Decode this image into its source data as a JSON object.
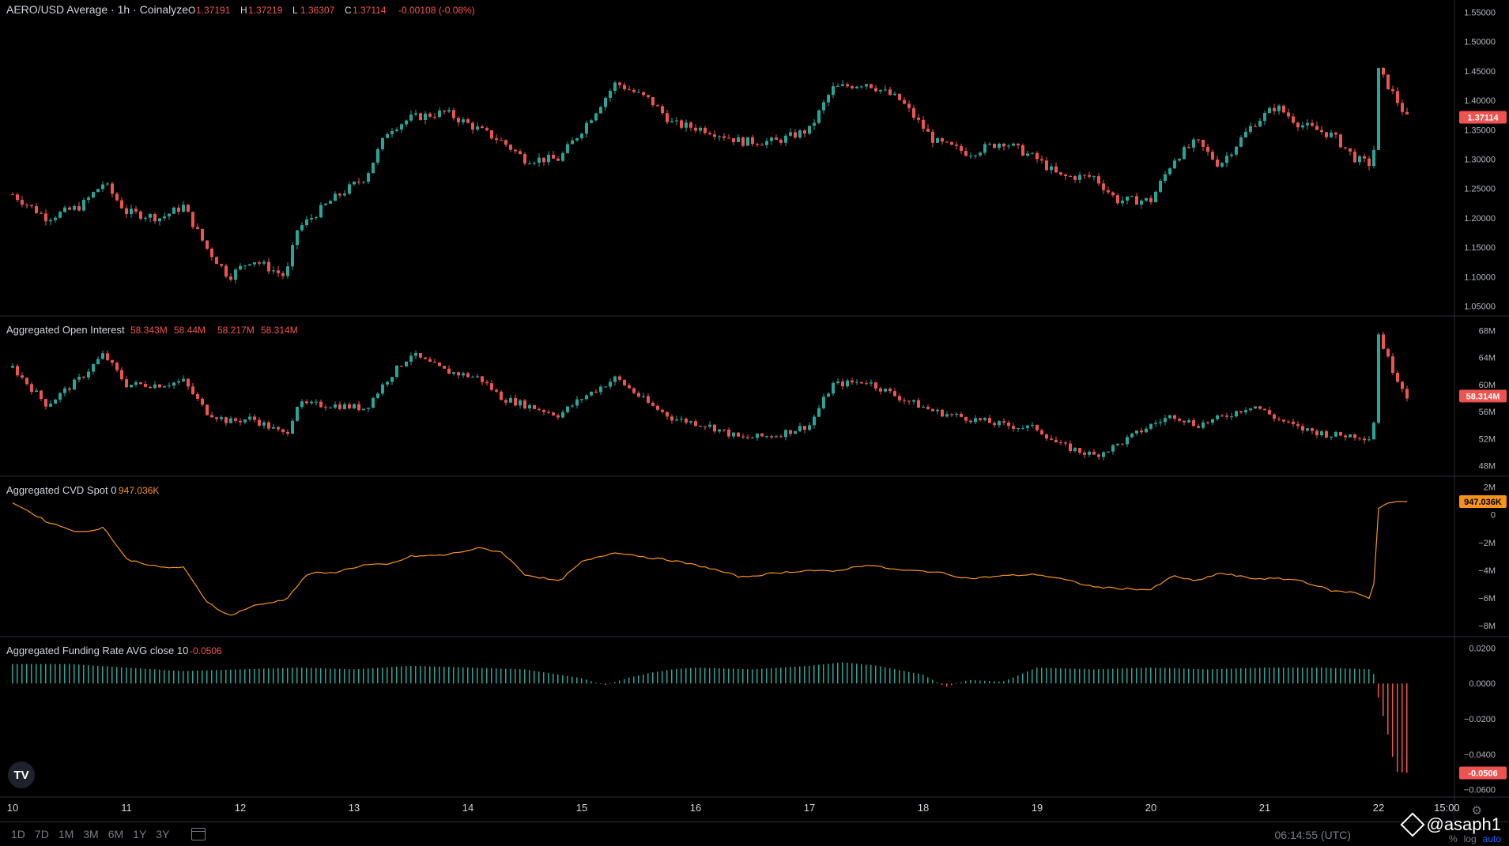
{
  "header": {
    "symbol_title": "AERO/USD Average · 1h · Coinalyze",
    "ohlc": [
      {
        "k": "O",
        "v": "1.37191"
      },
      {
        "k": "H",
        "v": "1.37219"
      },
      {
        "k": "L",
        "v": "1.36307"
      },
      {
        "k": "C",
        "v": "1.37114"
      }
    ],
    "change": "-0.00108 (-0.08%)",
    "last_price": "1.37114"
  },
  "panes": {
    "oi": {
      "title": "Aggregated Open Interest",
      "values": [
        "58.343M",
        "58.44M",
        "58.217M",
        "58.314M"
      ],
      "last": "58.314M"
    },
    "cvd": {
      "title": "Aggregated CVD Spot 0",
      "value": "947.036K",
      "last": "947.036K"
    },
    "funding": {
      "title": "Aggregated Funding Rate AVG close 10",
      "value": "-0.0506",
      "last": "-0.0506"
    }
  },
  "chart_data": [
    {
      "type": "candlestick",
      "title": "AERO/USD Average · 1h · Coinalyze",
      "y_ticks": [
        "1.55000",
        "1.50000",
        "1.45000",
        "1.40000",
        "1.35000",
        "1.30000",
        "1.25000",
        "1.20000",
        "1.15000",
        "1.10000",
        "1.05000"
      ],
      "ylim": [
        1.04,
        1.56
      ],
      "x_ticks": [
        "10",
        "11",
        "12",
        "13",
        "14",
        "15",
        "16",
        "17",
        "18",
        "19",
        "20",
        "21",
        "22",
        "15:00"
      ],
      "close_path": [
        [
          10.0,
          1.24
        ],
        [
          10.3,
          1.2
        ],
        [
          10.6,
          1.22
        ],
        [
          10.8,
          1.26
        ],
        [
          11.0,
          1.21
        ],
        [
          11.3,
          1.2
        ],
        [
          11.5,
          1.22
        ],
        [
          11.7,
          1.15
        ],
        [
          11.9,
          1.1
        ],
        [
          12.1,
          1.13
        ],
        [
          12.4,
          1.1
        ],
        [
          12.5,
          1.18
        ],
        [
          12.8,
          1.23
        ],
        [
          13.1,
          1.27
        ],
        [
          13.3,
          1.35
        ],
        [
          13.5,
          1.37
        ],
        [
          13.8,
          1.38
        ],
        [
          14.1,
          1.35
        ],
        [
          14.3,
          1.33
        ],
        [
          14.5,
          1.3
        ],
        [
          14.8,
          1.3
        ],
        [
          15.0,
          1.35
        ],
        [
          15.3,
          1.43
        ],
        [
          15.6,
          1.4
        ],
        [
          15.8,
          1.36
        ],
        [
          16.1,
          1.35
        ],
        [
          16.4,
          1.33
        ],
        [
          16.7,
          1.33
        ],
        [
          17.0,
          1.35
        ],
        [
          17.2,
          1.42
        ],
        [
          17.5,
          1.43
        ],
        [
          17.8,
          1.4
        ],
        [
          18.1,
          1.33
        ],
        [
          18.4,
          1.31
        ],
        [
          18.7,
          1.33
        ],
        [
          19.0,
          1.3
        ],
        [
          19.2,
          1.27
        ],
        [
          19.5,
          1.27
        ],
        [
          19.7,
          1.23
        ],
        [
          20.0,
          1.23
        ],
        [
          20.2,
          1.3
        ],
        [
          20.4,
          1.33
        ],
        [
          20.6,
          1.29
        ],
        [
          20.9,
          1.36
        ],
        [
          21.1,
          1.39
        ],
        [
          21.3,
          1.36
        ],
        [
          21.6,
          1.34
        ],
        [
          21.8,
          1.3
        ],
        [
          21.95,
          1.29
        ],
        [
          22.0,
          1.45
        ],
        [
          22.1,
          1.42
        ],
        [
          22.25,
          1.37
        ]
      ],
      "last_value": 1.37114
    },
    {
      "type": "candlestick",
      "title": "Aggregated Open Interest",
      "y_ticks": [
        "68M",
        "64M",
        "60M",
        "56M",
        "52M",
        "48M"
      ],
      "ylim": [
        47,
        69
      ],
      "close_path": [
        [
          10.0,
          62.5
        ],
        [
          10.3,
          57
        ],
        [
          10.6,
          61
        ],
        [
          10.8,
          64.5
        ],
        [
          11.0,
          60
        ],
        [
          11.3,
          60
        ],
        [
          11.5,
          60.5
        ],
        [
          11.7,
          56
        ],
        [
          11.9,
          54.5
        ],
        [
          12.1,
          55
        ],
        [
          12.4,
          52.5
        ],
        [
          12.5,
          57
        ],
        [
          12.8,
          57
        ],
        [
          13.1,
          56.5
        ],
        [
          13.3,
          61
        ],
        [
          13.5,
          64.5
        ],
        [
          13.8,
          62
        ],
        [
          14.1,
          61
        ],
        [
          14.3,
          58
        ],
        [
          14.5,
          57
        ],
        [
          14.8,
          55.5
        ],
        [
          15.0,
          58
        ],
        [
          15.3,
          61
        ],
        [
          15.6,
          57
        ],
        [
          15.8,
          55
        ],
        [
          16.1,
          54
        ],
        [
          16.4,
          52
        ],
        [
          16.7,
          52.5
        ],
        [
          17.0,
          54
        ],
        [
          17.2,
          60
        ],
        [
          17.5,
          60.5
        ],
        [
          17.8,
          58
        ],
        [
          18.1,
          56
        ],
        [
          18.4,
          55
        ],
        [
          18.7,
          54
        ],
        [
          19.0,
          53.5
        ],
        [
          19.2,
          51
        ],
        [
          19.5,
          49.5
        ],
        [
          19.7,
          51
        ],
        [
          20.0,
          54
        ],
        [
          20.2,
          55.5
        ],
        [
          20.4,
          54
        ],
        [
          20.6,
          55
        ],
        [
          20.9,
          57
        ],
        [
          21.1,
          55
        ],
        [
          21.3,
          53.5
        ],
        [
          21.6,
          52.5
        ],
        [
          21.8,
          52.5
        ],
        [
          21.95,
          52
        ],
        [
          22.0,
          67.5
        ],
        [
          22.1,
          63
        ],
        [
          22.25,
          58.314
        ]
      ],
      "last_value": 58.314
    },
    {
      "type": "line",
      "title": "Aggregated CVD Spot 0",
      "y_ticks": [
        "2M",
        "0",
        "−2M",
        "−4M",
        "−6M",
        "−8M"
      ],
      "ylim": [
        -8.5,
        2.2
      ],
      "path": [
        [
          10.0,
          0.9
        ],
        [
          10.3,
          -0.5
        ],
        [
          10.6,
          -1.3
        ],
        [
          10.8,
          -0.9
        ],
        [
          11.0,
          -3.2
        ],
        [
          11.3,
          -3.8
        ],
        [
          11.5,
          -3.8
        ],
        [
          11.7,
          -6.2
        ],
        [
          11.9,
          -7.3
        ],
        [
          12.1,
          -6.6
        ],
        [
          12.4,
          -6.1
        ],
        [
          12.6,
          -4.2
        ],
        [
          12.8,
          -4.2
        ],
        [
          13.1,
          -3.6
        ],
        [
          13.3,
          -3.6
        ],
        [
          13.5,
          -3.0
        ],
        [
          13.8,
          -2.9
        ],
        [
          14.1,
          -2.4
        ],
        [
          14.3,
          -2.7
        ],
        [
          14.5,
          -4.3
        ],
        [
          14.8,
          -4.8
        ],
        [
          15.0,
          -3.4
        ],
        [
          15.3,
          -2.7
        ],
        [
          15.6,
          -3.1
        ],
        [
          15.8,
          -3.3
        ],
        [
          16.1,
          -3.8
        ],
        [
          16.4,
          -4.5
        ],
        [
          16.7,
          -4.2
        ],
        [
          17.0,
          -4.0
        ],
        [
          17.2,
          -4.1
        ],
        [
          17.5,
          -3.6
        ],
        [
          17.8,
          -4.0
        ],
        [
          18.1,
          -4.1
        ],
        [
          18.4,
          -4.6
        ],
        [
          18.7,
          -4.4
        ],
        [
          19.0,
          -4.3
        ],
        [
          19.2,
          -4.6
        ],
        [
          19.5,
          -5.2
        ],
        [
          19.7,
          -5.3
        ],
        [
          20.0,
          -5.4
        ],
        [
          20.2,
          -4.4
        ],
        [
          20.4,
          -4.8
        ],
        [
          20.6,
          -4.2
        ],
        [
          20.9,
          -4.6
        ],
        [
          21.1,
          -4.6
        ],
        [
          21.3,
          -4.7
        ],
        [
          21.6,
          -5.5
        ],
        [
          21.8,
          -5.6
        ],
        [
          21.95,
          -6.1
        ],
        [
          22.0,
          0.5
        ],
        [
          22.1,
          0.9
        ],
        [
          22.25,
          0.947
        ]
      ],
      "last_value": 0.947
    },
    {
      "type": "bar",
      "title": "Aggregated Funding Rate AVG close 10",
      "y_ticks": [
        "0.0200",
        "0.0000",
        "−0.0200",
        "−0.0400",
        "−0.0600"
      ],
      "ylim": [
        -0.062,
        0.022
      ],
      "path": [
        [
          10.0,
          0.011
        ],
        [
          10.5,
          0.011
        ],
        [
          11.0,
          0.009
        ],
        [
          11.5,
          0.007
        ],
        [
          12.0,
          0.008
        ],
        [
          12.5,
          0.009
        ],
        [
          13.0,
          0.008
        ],
        [
          13.5,
          0.01
        ],
        [
          14.0,
          0.009
        ],
        [
          14.5,
          0.008
        ],
        [
          15.0,
          0.003
        ],
        [
          15.2,
          -0.001
        ],
        [
          15.4,
          0.003
        ],
        [
          15.6,
          0.006
        ],
        [
          15.8,
          0.008
        ],
        [
          16.0,
          0.009
        ],
        [
          16.5,
          0.008
        ],
        [
          17.0,
          0.01
        ],
        [
          17.3,
          0.012
        ],
        [
          17.6,
          0.01
        ],
        [
          18.0,
          0.005
        ],
        [
          18.2,
          -0.002
        ],
        [
          18.4,
          0.002
        ],
        [
          18.7,
          0.001
        ],
        [
          19.0,
          0.009
        ],
        [
          19.5,
          0.008
        ],
        [
          20.0,
          0.009
        ],
        [
          20.5,
          0.008
        ],
        [
          21.0,
          0.009
        ],
        [
          21.5,
          0.009
        ],
        [
          21.95,
          0.008
        ],
        [
          22.0,
          -0.008
        ],
        [
          22.1,
          -0.033
        ],
        [
          22.15,
          -0.05
        ],
        [
          22.25,
          -0.0506
        ]
      ],
      "last_value": -0.0506
    }
  ],
  "bottombar": {
    "timeframes": [
      "1D",
      "7D",
      "1M",
      "3M",
      "6M",
      "1Y",
      "3Y"
    ],
    "clock": "06:14:55 (UTC)",
    "watermark": "@asaph1",
    "opts": [
      "%",
      "log",
      "auto"
    ]
  },
  "colors": {
    "up": "#26a69a",
    "down": "#ef5350",
    "cvd": "#f7931a",
    "grid": "#2a2e39",
    "funding_pos": "#26a69a",
    "funding_neg": "#ef5350"
  }
}
